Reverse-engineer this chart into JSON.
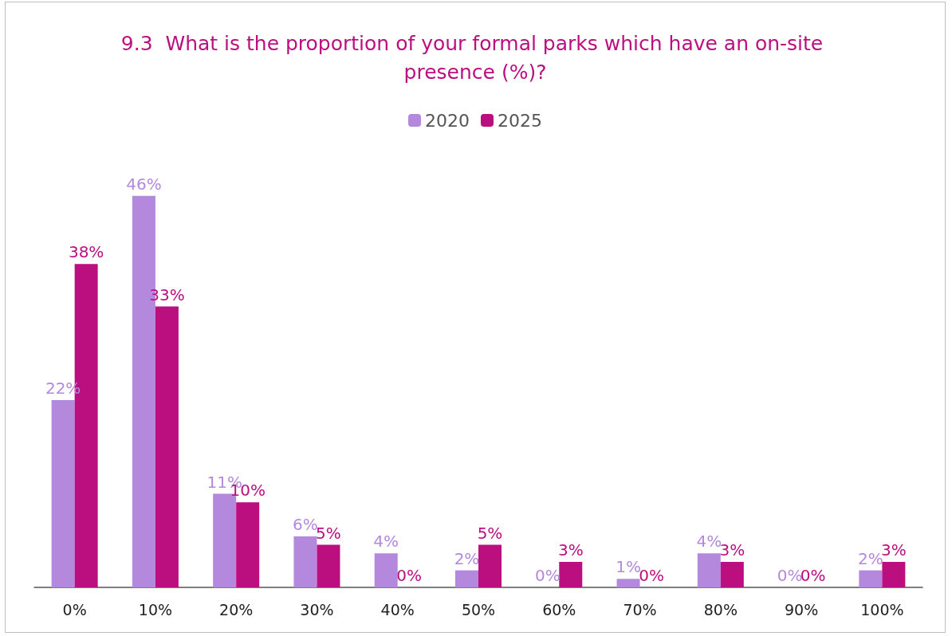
{
  "chart_data": {
    "type": "bar",
    "title": "9.3  What is the proportion of your formal parks which have an on-site presence (%)?",
    "categories": [
      "0%",
      "10%",
      "20%",
      "30%",
      "40%",
      "50%",
      "60%",
      "70%",
      "80%",
      "90%",
      "100%"
    ],
    "series": [
      {
        "name": "2020",
        "color": "#b388dd",
        "values": [
          22,
          46,
          11,
          6,
          4,
          2,
          0,
          1,
          4,
          0,
          2
        ],
        "value_labels": [
          "22%",
          "46%",
          "11%",
          "6%",
          "4%",
          "2%",
          "0%",
          "1%",
          "4%",
          "0%",
          "2%"
        ]
      },
      {
        "name": "2025",
        "color": "#bb0f80",
        "values": [
          38,
          33,
          10,
          5,
          0,
          5,
          3,
          0,
          3,
          0,
          3
        ],
        "value_labels": [
          "38%",
          "33%",
          "10%",
          "5%",
          "0%",
          "5%",
          "3%",
          "0%",
          "3%",
          "0%",
          "3%"
        ]
      }
    ],
    "legend": "top",
    "tick_labels": "x"
  }
}
